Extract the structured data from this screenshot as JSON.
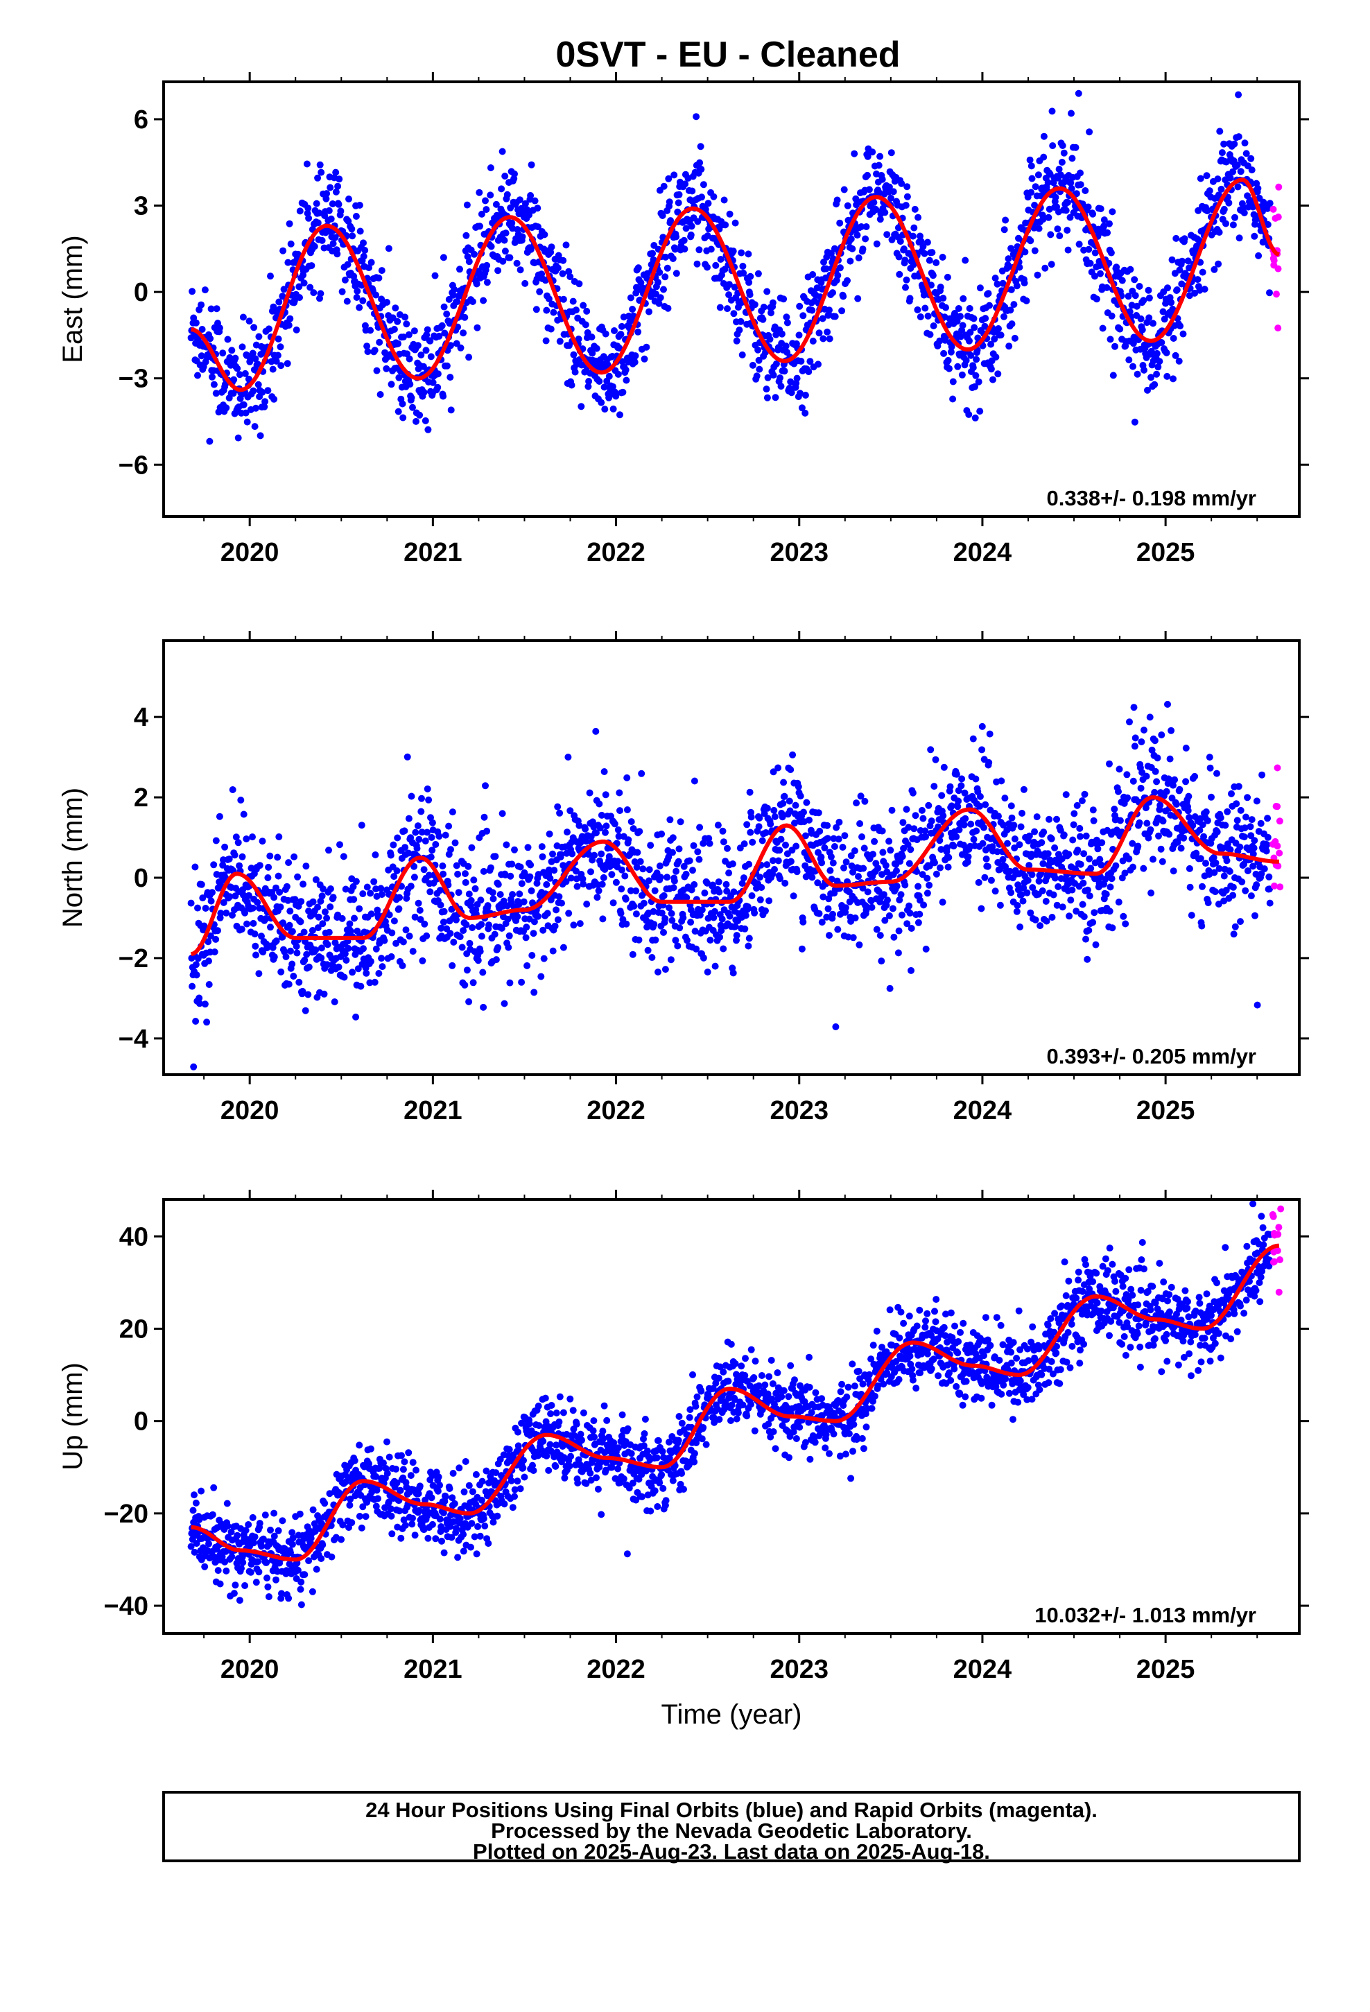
{
  "chart_data": {
    "title": "0SVT  - EU - Cleaned",
    "type": "scatter",
    "colors": {
      "final_orbits": "#0000ff",
      "rapid_orbits": "#ff00ff",
      "model_fit": "#ff0000",
      "frame": "#000000"
    },
    "panels": [
      {
        "id": "east",
        "ylabel": "East (mm)",
        "ylim": [
          -7.8,
          7.3
        ],
        "yticks": [
          -6,
          -3,
          0,
          3,
          6
        ],
        "yticklabels": [
          "−6",
          "−3",
          "0",
          "3",
          "6"
        ],
        "xlabel": "",
        "rate_text": "0.338+/- 0.198 mm/yr",
        "model": {
          "trend_mm_per_yr": 0.338,
          "annual_amp": 2.85,
          "annual_peak": 0.43,
          "semi_amp": 0.2,
          "offset": -0.3,
          "ref_year": 2022.5
        },
        "fit": [
          [
            2019.68,
            -1.3
          ],
          [
            2019.95,
            -3.4
          ],
          [
            2020.42,
            2.3
          ],
          [
            2020.92,
            -3.0
          ],
          [
            2021.42,
            2.6
          ],
          [
            2021.92,
            -2.8
          ],
          [
            2022.42,
            2.9
          ],
          [
            2022.92,
            -2.4
          ],
          [
            2023.42,
            3.3
          ],
          [
            2023.92,
            -2.0
          ],
          [
            2024.42,
            3.6
          ],
          [
            2024.92,
            -1.7
          ],
          [
            2025.42,
            3.9
          ],
          [
            2025.62,
            1.3
          ]
        ]
      },
      {
        "id": "north",
        "ylabel": "North (mm)",
        "ylim": [
          -4.9,
          5.9
        ],
        "yticks": [
          -4,
          -2,
          0,
          2,
          4
        ],
        "yticklabels": [
          "−4",
          "−2",
          "0",
          "2",
          "4"
        ],
        "xlabel": "",
        "rate_text": "0.393+/- 0.205 mm/yr",
        "model": {
          "trend_mm_per_yr": 0.393,
          "annual_amp": 0.8,
          "annual_peak": 0.95,
          "semi_amp": 0.3,
          "offset": -0.2,
          "ref_year": 2022.5
        },
        "fit": [
          [
            2019.68,
            -1.9
          ],
          [
            2019.93,
            0.1
          ],
          [
            2020.25,
            -1.5
          ],
          [
            2020.62,
            -1.5
          ],
          [
            2020.93,
            0.5
          ],
          [
            2021.2,
            -1.0
          ],
          [
            2021.5,
            -0.8
          ],
          [
            2021.93,
            0.9
          ],
          [
            2022.25,
            -0.6
          ],
          [
            2022.62,
            -0.6
          ],
          [
            2022.93,
            1.3
          ],
          [
            2023.2,
            -0.2
          ],
          [
            2023.5,
            -0.1
          ],
          [
            2023.93,
            1.7
          ],
          [
            2024.25,
            0.2
          ],
          [
            2024.62,
            0.1
          ],
          [
            2024.93,
            2.0
          ],
          [
            2025.3,
            0.6
          ],
          [
            2025.62,
            0.4
          ]
        ]
      },
      {
        "id": "up",
        "ylabel": "Up (mm)",
        "ylim": [
          -46,
          48
        ],
        "yticks": [
          -40,
          -20,
          0,
          20,
          40
        ],
        "yticklabels": [
          "−40",
          "−20",
          "0",
          "20",
          "40"
        ],
        "xlabel": "Time (year)",
        "rate_text": "10.032+/- 1.013 mm/yr",
        "model": {
          "trend_mm_per_yr": 10.032,
          "annual_amp": 4.0,
          "annual_peak": 0.62,
          "semi_amp": 0.0,
          "offset": 0.0,
          "ref_year": 2022.6
        },
        "fit": [
          [
            2019.68,
            -23
          ],
          [
            2019.95,
            -28
          ],
          [
            2020.25,
            -30
          ],
          [
            2020.62,
            -13
          ],
          [
            2020.95,
            -18
          ],
          [
            2021.2,
            -20
          ],
          [
            2021.62,
            -3
          ],
          [
            2021.95,
            -8
          ],
          [
            2022.25,
            -10
          ],
          [
            2022.62,
            7
          ],
          [
            2022.95,
            1
          ],
          [
            2023.2,
            0
          ],
          [
            2023.62,
            17
          ],
          [
            2023.95,
            12
          ],
          [
            2024.2,
            10
          ],
          [
            2024.62,
            27
          ],
          [
            2024.95,
            22
          ],
          [
            2025.2,
            20
          ],
          [
            2025.62,
            38
          ]
        ]
      }
    ],
    "xlim": [
      2019.53,
      2025.73
    ],
    "xticks": [
      2020,
      2021,
      2022,
      2023,
      2024,
      2025
    ],
    "xticklabels": [
      "2020",
      "2021",
      "2022",
      "2023",
      "2024",
      "2025"
    ],
    "daily_series": {
      "final_orbits": {
        "x_start": 2019.68,
        "x_end": 2025.57,
        "n_points": 2150
      },
      "rapid_orbits": {
        "x_start": 2025.585,
        "x_end": 2025.63,
        "n_points": 14
      }
    },
    "grid": false
  },
  "caption": {
    "line1": "24 Hour Positions Using Final Orbits (blue) and Rapid Orbits (magenta).",
    "line2": "Processed by the Nevada Geodetic Laboratory.",
    "line3": "Plotted on 2025-Aug-23. Last data on 2025-Aug-18."
  }
}
